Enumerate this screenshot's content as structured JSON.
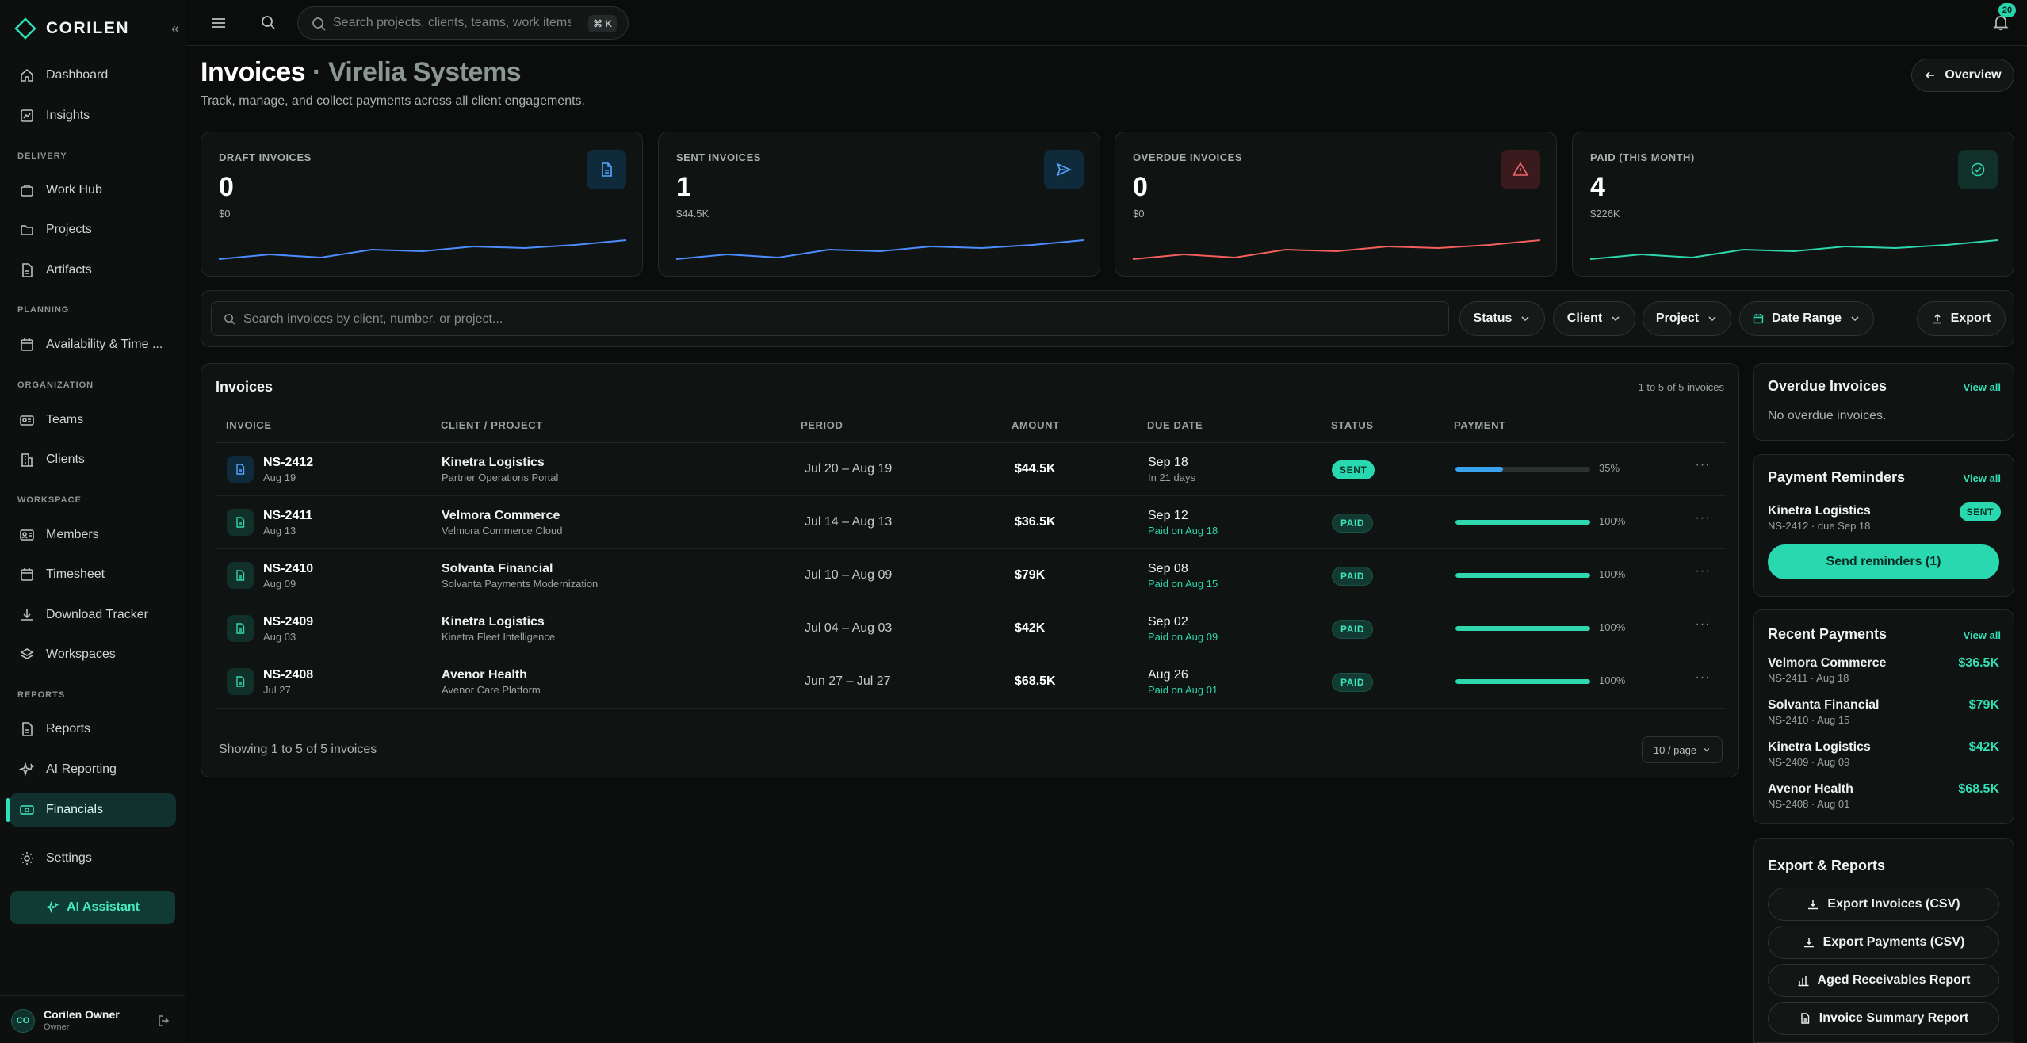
{
  "brand": {
    "name": "CORILEN"
  },
  "sidebar": {
    "items": [
      {
        "label": "Dashboard",
        "icon": "home-icon"
      },
      {
        "label": "Insights",
        "icon": "chart-icon"
      },
      {
        "label": "Work Hub",
        "icon": "briefcase-icon"
      },
      {
        "label": "Projects",
        "icon": "folder-icon"
      },
      {
        "label": "Artifacts",
        "icon": "file-icon"
      },
      {
        "label": "Availability & Time ...",
        "icon": "calendar-icon"
      },
      {
        "label": "Teams",
        "icon": "team-icon"
      },
      {
        "label": "Clients",
        "icon": "building-icon"
      },
      {
        "label": "Members",
        "icon": "id-card-icon"
      },
      {
        "label": "Timesheet",
        "icon": "calendar-icon"
      },
      {
        "label": "Download Tracker",
        "icon": "download-icon"
      },
      {
        "label": "Workspaces",
        "icon": "layers-icon"
      },
      {
        "label": "Reports",
        "icon": "file-icon"
      },
      {
        "label": "AI Reporting",
        "icon": "sparkle-icon"
      },
      {
        "label": "Financials",
        "icon": "money-icon",
        "active": true
      },
      {
        "label": "Settings",
        "icon": "gear-icon"
      }
    ],
    "sections": {
      "delivery": "DELIVERY",
      "planning": "PLANNING",
      "organization": "ORGANIZATION",
      "workspace": "WORKSPACE",
      "reports": "REPORTS"
    },
    "ai_assistant": "AI Assistant",
    "user": {
      "initials": "CO",
      "name": "Corilen Owner",
      "role": "Owner"
    }
  },
  "topbar": {
    "search_placeholder": "Search projects, clients, teams, work items...",
    "shortcut": "⌘ K",
    "notifications": "20"
  },
  "header": {
    "title": "Invoices",
    "separator": "·",
    "org": "Virelia Systems",
    "subtitle": "Track, manage, and collect payments across all client engagements.",
    "overview_label": "Overview"
  },
  "stats": [
    {
      "label": "DRAFT INVOICES",
      "value": "0",
      "sub": "$0",
      "color": "#4c8dff",
      "icon": "file-icon",
      "trend": [
        2,
        5,
        3,
        8,
        7,
        10,
        9,
        11,
        14
      ]
    },
    {
      "label": "SENT INVOICES",
      "value": "1",
      "sub": "$44.5K",
      "color": "#4c8dff",
      "icon": "send-icon",
      "trend": [
        2,
        5,
        3,
        8,
        7,
        10,
        9,
        11,
        14
      ]
    },
    {
      "label": "OVERDUE INVOICES",
      "value": "0",
      "sub": "$0",
      "color": "#f25f5c",
      "icon": "alert-icon",
      "trend": [
        2,
        5,
        3,
        8,
        7,
        10,
        9,
        11,
        14
      ]
    },
    {
      "label": "PAID (THIS MONTH)",
      "value": "4",
      "sub": "$226K",
      "color": "#2fd7ad",
      "icon": "check-circle-icon",
      "trend": [
        2,
        5,
        3,
        8,
        7,
        10,
        9,
        11,
        14
      ]
    }
  ],
  "filters": {
    "search_placeholder": "Search invoices by client, number, or project...",
    "status": "Status",
    "client": "Client",
    "project": "Project",
    "date_range": "Date Range",
    "export": "Export"
  },
  "table": {
    "title": "Invoices",
    "count": "1 to 5 of 5 invoices",
    "headers": [
      "INVOICE",
      "CLIENT / PROJECT",
      "PERIOD",
      "AMOUNT",
      "DUE DATE",
      "STATUS",
      "PAYMENT"
    ],
    "rows": [
      {
        "number": "NS-2412",
        "date": "Aug 19",
        "client": "Kinetra Logistics",
        "project": "Partner Operations Portal",
        "period": "Jul 20 – Aug 19",
        "amount": "$44.5K",
        "due": "Sep 18",
        "due_sub": "In 21 days",
        "status": "SENT",
        "payment": "35%",
        "menu": "···"
      },
      {
        "number": "NS-2411",
        "date": "Aug 13",
        "client": "Velmora Commerce",
        "project": "Velmora Commerce Cloud",
        "period": "Jul 14 – Aug 13",
        "amount": "$36.5K",
        "due": "Sep 12",
        "due_sub": "Paid on Aug 18",
        "status": "PAID",
        "payment": "100%",
        "menu": "···"
      },
      {
        "number": "NS-2410",
        "date": "Aug 09",
        "client": "Solvanta Financial",
        "project": "Solvanta Payments Modernization",
        "period": "Jul 10 – Aug 09",
        "amount": "$79K",
        "due": "Sep 08",
        "due_sub": "Paid on Aug 15",
        "status": "PAID",
        "payment": "100%",
        "menu": "···"
      },
      {
        "number": "NS-2409",
        "date": "Aug 03",
        "client": "Kinetra Logistics",
        "project": "Kinetra Fleet Intelligence",
        "period": "Jul 04 – Aug 03",
        "amount": "$42K",
        "due": "Sep 02",
        "due_sub": "Paid on Aug 09",
        "status": "PAID",
        "payment": "100%",
        "menu": "···"
      },
      {
        "number": "NS-2408",
        "date": "Jul 27",
        "client": "Avenor Health",
        "project": "Avenor Care Platform",
        "period": "Jun 27 – Jul 27",
        "amount": "$68.5K",
        "due": "Aug 26",
        "due_sub": "Paid on Aug 01",
        "status": "PAID",
        "payment": "100%",
        "menu": "···"
      }
    ],
    "footer": "Showing 1 to 5 of 5 invoices",
    "per_page": "10 / page"
  },
  "overdue": {
    "title": "Overdue Invoices",
    "view_all": "View all",
    "empty": "No overdue invoices."
  },
  "reminders": {
    "title": "Payment Reminders",
    "view_all": "View all",
    "client": "Kinetra Logistics",
    "sub": "NS-2412 · due Sep 18",
    "badge": "SENT",
    "button": "Send reminders (1)"
  },
  "recent_payments": {
    "title": "Recent Payments",
    "view_all": "View all",
    "items": [
      {
        "client": "Velmora Commerce",
        "sub": "NS-2411 · Aug 18",
        "amount": "$36.5K"
      },
      {
        "client": "Solvanta Financial",
        "sub": "NS-2410 · Aug 15",
        "amount": "$79K"
      },
      {
        "client": "Kinetra Logistics",
        "sub": "NS-2409 · Aug 09",
        "amount": "$42K"
      },
      {
        "client": "Avenor Health",
        "sub": "NS-2408 · Aug 01",
        "amount": "$68.5K"
      }
    ]
  },
  "export_reports": {
    "title": "Export & Reports",
    "buttons": [
      "Export Invoices (CSV)",
      "Export Payments (CSV)",
      "Aged Receivables Report",
      "Invoice Summary Report"
    ]
  },
  "colors": {
    "accent": "#2ad8b0",
    "blue": "#4c8dff",
    "red": "#f25f5c",
    "background": "#0b0d0d"
  }
}
